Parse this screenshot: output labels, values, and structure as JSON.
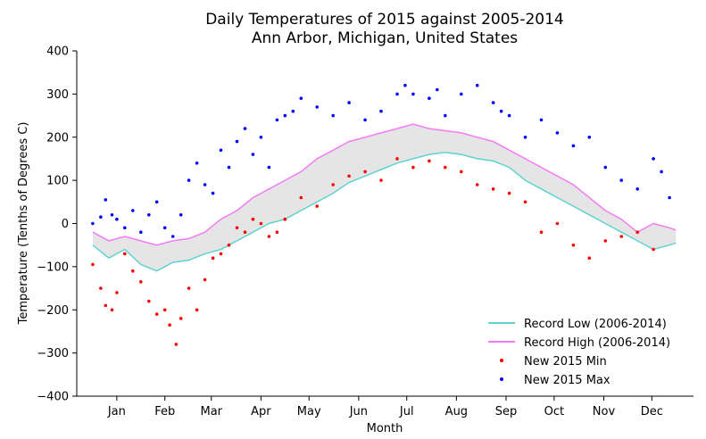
{
  "chart_data": {
    "type": "line",
    "title": "Daily Temperatures of 2015 against 2005-2014",
    "subtitle": "Ann Arbor, Michigan, United States",
    "xlabel": "Month",
    "ylabel": "Temperature (Tenths of Degrees C)",
    "ylim": [
      -400,
      400
    ],
    "yticks": [
      -400,
      -300,
      -200,
      -100,
      0,
      100,
      200,
      300,
      400
    ],
    "ytick_labels": [
      "−400",
      "−300",
      "−200",
      "−100",
      "0",
      "100",
      "200",
      "300",
      "400"
    ],
    "xlim": [
      -10,
      375
    ],
    "xticks": [
      15,
      45,
      74,
      105,
      135,
      166,
      196,
      227,
      258,
      288,
      319,
      349
    ],
    "xtick_labels": [
      "Jan",
      "Feb",
      "Mar",
      "Apr",
      "May",
      "Jun",
      "Jul",
      "Aug",
      "Sep",
      "Oct",
      "Nov",
      "Dec"
    ],
    "legend_position": "lower-right",
    "fill_between": {
      "color": "#d3d3d3"
    },
    "series": [
      {
        "name": "Record Low (2006-2014)",
        "kind": "line",
        "color": "#5fd3cf",
        "x": [
          0,
          10,
          20,
          30,
          40,
          50,
          60,
          70,
          80,
          90,
          100,
          110,
          120,
          130,
          140,
          150,
          160,
          170,
          180,
          190,
          200,
          210,
          220,
          230,
          240,
          250,
          260,
          270,
          280,
          290,
          300,
          310,
          320,
          330,
          340,
          350,
          360,
          364
        ],
        "y": [
          -50,
          -80,
          -60,
          -95,
          -110,
          -90,
          -85,
          -70,
          -60,
          -40,
          -20,
          0,
          10,
          30,
          50,
          70,
          95,
          110,
          125,
          140,
          150,
          160,
          165,
          160,
          150,
          145,
          130,
          100,
          80,
          60,
          40,
          20,
          0,
          -20,
          -40,
          -60,
          -50,
          -45
        ]
      },
      {
        "name": "Record High (2006-2014)",
        "kind": "line",
        "color": "#f57af5",
        "x": [
          0,
          10,
          20,
          30,
          40,
          50,
          60,
          70,
          80,
          90,
          100,
          110,
          120,
          130,
          140,
          150,
          160,
          170,
          180,
          190,
          200,
          210,
          220,
          230,
          240,
          250,
          260,
          270,
          280,
          290,
          300,
          310,
          320,
          330,
          340,
          350,
          360,
          364
        ],
        "y": [
          -20,
          -40,
          -30,
          -40,
          -50,
          -40,
          -35,
          -20,
          10,
          30,
          60,
          80,
          100,
          120,
          150,
          170,
          190,
          200,
          210,
          220,
          230,
          220,
          215,
          210,
          200,
          190,
          170,
          150,
          130,
          110,
          90,
          60,
          30,
          10,
          -20,
          0,
          -10,
          -15
        ]
      },
      {
        "name": "New 2015 Min",
        "kind": "scatter",
        "color": "#ff0000",
        "x": [
          0,
          5,
          8,
          12,
          15,
          20,
          25,
          30,
          35,
          40,
          45,
          48,
          52,
          55,
          60,
          65,
          70,
          75,
          80,
          85,
          90,
          95,
          100,
          105,
          110,
          115,
          120,
          130,
          140,
          150,
          160,
          170,
          180,
          190,
          200,
          210,
          220,
          230,
          240,
          250,
          260,
          270,
          280,
          290,
          300,
          310,
          320,
          330,
          340,
          350
        ],
        "y": [
          -95,
          -150,
          -190,
          -200,
          -160,
          -70,
          -110,
          -135,
          -180,
          -210,
          -200,
          -235,
          -280,
          -220,
          -150,
          -200,
          -130,
          -80,
          -70,
          -50,
          -10,
          -20,
          10,
          0,
          -30,
          -20,
          10,
          60,
          40,
          90,
          110,
          120,
          100,
          150,
          130,
          145,
          130,
          120,
          90,
          80,
          70,
          50,
          -20,
          0,
          -50,
          -80,
          -40,
          -30,
          -20,
          -60
        ]
      },
      {
        "name": "New 2015 Max",
        "kind": "scatter",
        "color": "#0000ff",
        "x": [
          0,
          5,
          8,
          12,
          15,
          20,
          25,
          30,
          35,
          40,
          45,
          50,
          55,
          60,
          65,
          70,
          75,
          80,
          85,
          90,
          95,
          100,
          105,
          110,
          115,
          120,
          125,
          130,
          140,
          150,
          160,
          170,
          180,
          190,
          195,
          200,
          210,
          215,
          220,
          230,
          240,
          250,
          255,
          260,
          270,
          280,
          290,
          300,
          310,
          320,
          330,
          340,
          350,
          355,
          360
        ],
        "y": [
          0,
          15,
          55,
          20,
          10,
          -10,
          30,
          -20,
          20,
          50,
          -10,
          -30,
          20,
          100,
          140,
          90,
          70,
          170,
          130,
          190,
          220,
          160,
          200,
          130,
          240,
          250,
          260,
          290,
          270,
          250,
          280,
          240,
          260,
          300,
          320,
          300,
          290,
          310,
          250,
          300,
          320,
          280,
          260,
          250,
          200,
          240,
          210,
          180,
          200,
          130,
          100,
          80,
          150,
          120,
          60
        ]
      }
    ]
  }
}
